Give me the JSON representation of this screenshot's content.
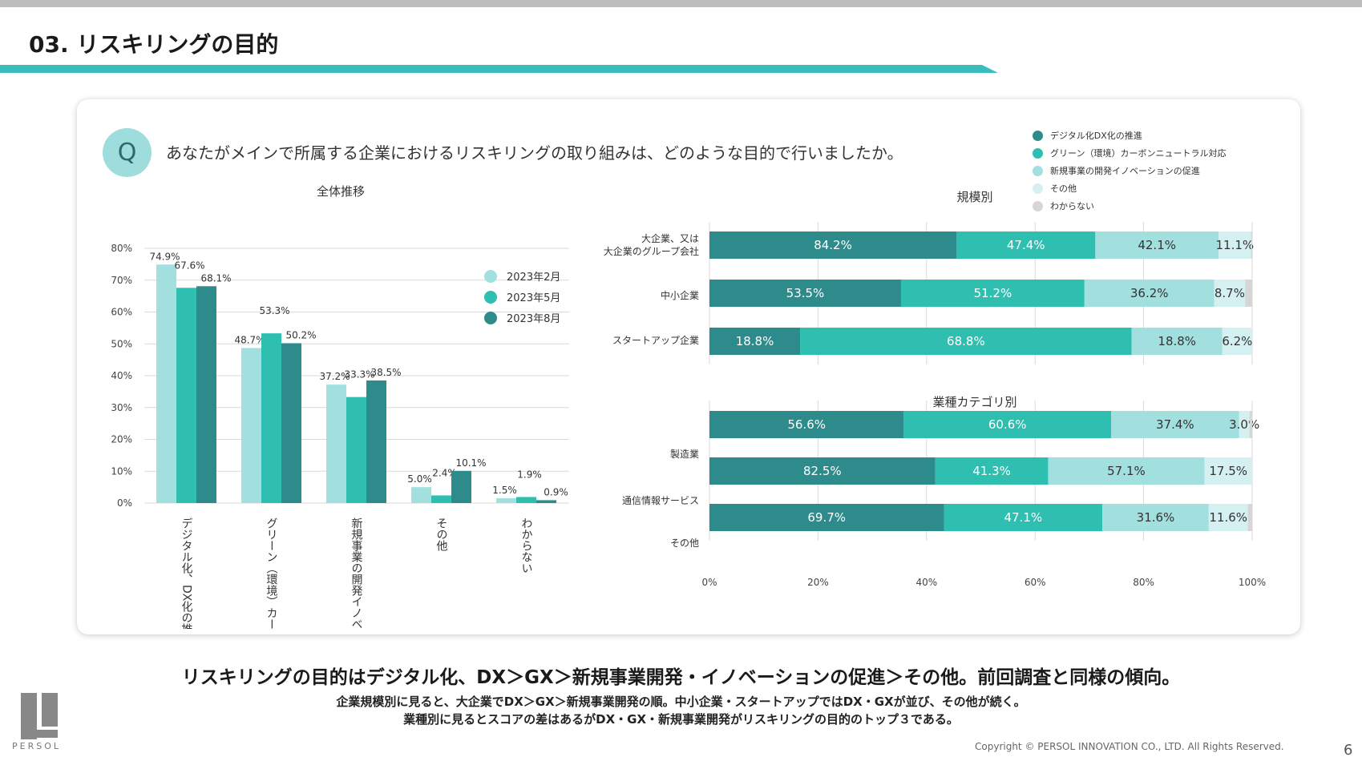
{
  "page": {
    "title": "03. リスキリングの目的",
    "question_badge": "Q",
    "question": "あなたがメインで所属する企業におけるリスキリングの取り組みは、どのような目的で行いましたか。",
    "headline": "リスキリングの目的はデジタル化、DX＞GX＞新規事業開発・イノベーションの促進＞その他。前回調査と同様の傾向。",
    "sub1": "企業規模別に見ると、大企業でDX＞GX＞新規事業開発の順。中小企業・スタートアップではDX・GXが並び、その他が続く。",
    "sub2": "業種別に見るとスコアの差はあるがDX・GX・新規事業開発がリスキリングの目的のトップ３である。",
    "copyright": "Copyright © PERSOL INNOVATION CO., LTD. All Rights Reserved.",
    "page_number": "6",
    "logo_text": "PERSOL"
  },
  "colors": {
    "dark_teal": "#2e8b8b",
    "teal": "#2ebfb0",
    "light_teal": "#a2dfdf",
    "pale": "#d4f0f0",
    "gray": "#d6d6d6",
    "accent_rule": "#3bbcbc"
  },
  "legend_right": [
    {
      "label": "デジタル化DX化の推進",
      "color": "#2e8b8b"
    },
    {
      "label": "グリーン（環境）カーボンニュートラル対応",
      "color": "#2ebfb0"
    },
    {
      "label": "新規事業の開発イノベーションの促進",
      "color": "#a2dfdf"
    },
    {
      "label": "その他",
      "color": "#d4f0f0"
    },
    {
      "label": "わからない",
      "color": "#d6d6d6"
    }
  ],
  "chart_data": [
    {
      "type": "bar",
      "title": "全体推移",
      "ylim": [
        0,
        80
      ],
      "yticks": [
        "0%",
        "10%",
        "20%",
        "30%",
        "40%",
        "50%",
        "60%",
        "70%",
        "80%"
      ],
      "categories": [
        "デジタル化、DX化の推進",
        "グリーン（環境）カーボンニュートラル対応",
        "新規事業の開発イノベーションの促進",
        "その他",
        "わからない"
      ],
      "series": [
        {
          "name": "2023年2月",
          "color": "#a2dfdf",
          "values": [
            74.9,
            48.7,
            37.2,
            5.0,
            1.5
          ],
          "labels": [
            "74.9%",
            "48.7%",
            "37.2%",
            "5.0%",
            "1.5%"
          ]
        },
        {
          "name": "2023年5月",
          "color": "#2ebfb0",
          "values": [
            67.6,
            53.3,
            33.3,
            2.4,
            1.9
          ],
          "labels": [
            "67.6%",
            "53.3%",
            "33.3%",
            "2.4%",
            "1.9%"
          ]
        },
        {
          "name": "2023年8月",
          "color": "#2e8b8b",
          "values": [
            68.1,
            50.2,
            38.5,
            10.1,
            0.9
          ],
          "labels": [
            "68.1%",
            "50.2%",
            "38.5%",
            "10.1%",
            "0.9%"
          ]
        }
      ],
      "grid": true,
      "legend": "top-right"
    },
    {
      "type": "bar",
      "orientation": "horizontal-stacked",
      "title": "規模別",
      "categories": [
        "大企業、又は大企業のグループ会社",
        "中小企業",
        "スタートアップ企業"
      ],
      "series_values": [
        [
          84.2,
          47.4,
          42.1,
          11.1,
          0
        ],
        [
          53.5,
          51.2,
          36.2,
          8.7,
          0
        ],
        [
          18.8,
          68.8,
          18.8,
          6.2,
          0
        ]
      ],
      "segment_widths": [
        [
          45.5,
          25.6,
          22.7,
          6.0,
          0.2
        ],
        [
          35.3,
          33.8,
          23.9,
          5.7,
          1.3
        ],
        [
          16.7,
          61.1,
          16.7,
          5.5,
          0
        ]
      ],
      "labels": [
        [
          "84.2%",
          "47.4%",
          "42.1%",
          "11.1%",
          ""
        ],
        [
          "53.5%",
          "51.2%",
          "36.2%",
          "8.7%",
          ""
        ],
        [
          "18.8%",
          "68.8%",
          "18.8%",
          "6.2%",
          ""
        ]
      ],
      "segment_colors": [
        "#2e8b8b",
        "#2ebfb0",
        "#a2dfdf",
        "#d4f0f0",
        "#d6d6d6"
      ],
      "last_segment_color_row3": "#d6d6d6"
    },
    {
      "type": "bar",
      "orientation": "horizontal-stacked",
      "title": "業種カテゴリ別",
      "categories": [
        "製造業",
        "通信情報サービス",
        "その他"
      ],
      "series_values": [
        [
          56.6,
          60.6,
          37.4,
          3.0,
          0
        ],
        [
          82.5,
          41.3,
          57.1,
          17.5,
          0
        ],
        [
          69.7,
          47.1,
          31.6,
          11.6,
          0
        ]
      ],
      "segment_widths": [
        [
          35.8,
          38.2,
          23.6,
          1.9,
          0.5
        ],
        [
          41.6,
          20.8,
          28.8,
          8.8,
          0
        ],
        [
          43.2,
          29.2,
          19.6,
          7.2,
          0.8
        ]
      ],
      "labels": [
        [
          "56.6%",
          "60.6%",
          "37.4%",
          "3.0%",
          ""
        ],
        [
          "82.5%",
          "41.3%",
          "57.1%",
          "17.5%",
          ""
        ],
        [
          "69.7%",
          "47.1%",
          "31.6%",
          "11.6%",
          ""
        ]
      ],
      "segment_colors": [
        "#2e8b8b",
        "#2ebfb0",
        "#a2dfdf",
        "#d4f0f0",
        "#d6d6d6"
      ],
      "xticks": [
        "0%",
        "20%",
        "40%",
        "60%",
        "80%",
        "100%"
      ]
    }
  ]
}
